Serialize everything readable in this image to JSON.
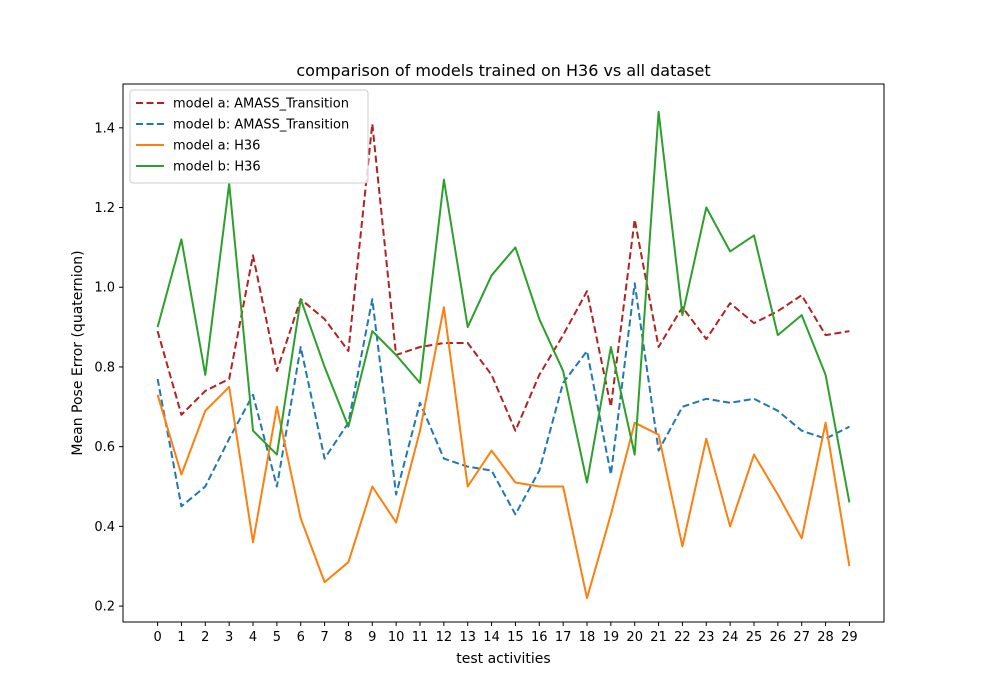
{
  "chart_data": {
    "type": "line",
    "title": "comparison of models trained on H36 vs all dataset",
    "xlabel": "test activities",
    "ylabel": "Mean Pose Error (quaternion)",
    "x": [
      0,
      1,
      2,
      3,
      4,
      5,
      6,
      7,
      8,
      9,
      10,
      11,
      12,
      13,
      14,
      15,
      16,
      17,
      18,
      19,
      20,
      21,
      22,
      23,
      24,
      25,
      26,
      27,
      28,
      29
    ],
    "x_tick_labels": [
      "0",
      "1",
      "2",
      "3",
      "4",
      "5",
      "6",
      "7",
      "8",
      "9",
      "10",
      "11",
      "12",
      "13",
      "14",
      "15",
      "16",
      "17",
      "18",
      "19",
      "20",
      "21",
      "22",
      "23",
      "24",
      "25",
      "26",
      "27",
      "28",
      "29"
    ],
    "xlim": [
      -1.45,
      30.45
    ],
    "ylim": [
      0.16,
      1.51
    ],
    "y_ticks": [
      0.2,
      0.4,
      0.6,
      0.8,
      1.0,
      1.2,
      1.4
    ],
    "y_tick_labels": [
      "0.2",
      "0.4",
      "0.6",
      "0.8",
      "1.0",
      "1.2",
      "1.4"
    ],
    "grid": false,
    "legend_position": "top-left",
    "series": [
      {
        "name": "model a: AMASS_Transition",
        "color": "#b22222",
        "dash": "dashed",
        "values": [
          0.89,
          0.68,
          0.74,
          0.77,
          1.08,
          0.79,
          0.97,
          0.92,
          0.84,
          1.41,
          0.83,
          0.85,
          0.86,
          0.86,
          0.78,
          0.64,
          0.78,
          0.88,
          0.99,
          0.7,
          1.17,
          0.85,
          0.95,
          0.87,
          0.96,
          0.91,
          0.94,
          0.98,
          0.88,
          0.89
        ]
      },
      {
        "name": "model b: AMASS_Transition",
        "color": "#1f77b4",
        "dash": "dashed",
        "values": [
          0.77,
          0.45,
          0.5,
          0.62,
          0.73,
          0.5,
          0.85,
          0.57,
          0.66,
          0.97,
          0.48,
          0.71,
          0.57,
          0.55,
          0.54,
          0.43,
          0.54,
          0.76,
          0.84,
          0.53,
          1.01,
          0.59,
          0.7,
          0.72,
          0.71,
          0.72,
          0.69,
          0.64,
          0.62,
          0.65
        ]
      },
      {
        "name": "model a: H36",
        "color": "#ff7f0e",
        "dash": "solid",
        "values": [
          0.73,
          0.53,
          0.69,
          0.75,
          0.36,
          0.7,
          0.42,
          0.26,
          0.31,
          0.5,
          0.41,
          0.64,
          0.95,
          0.5,
          0.59,
          0.51,
          0.5,
          0.5,
          0.22,
          0.43,
          0.66,
          0.63,
          0.35,
          0.62,
          0.4,
          0.58,
          0.48,
          0.37,
          0.66,
          0.3
        ]
      },
      {
        "name": "model b: H36",
        "color": "#2ca02c",
        "dash": "solid",
        "values": [
          0.9,
          1.12,
          0.78,
          1.26,
          0.64,
          0.58,
          0.97,
          0.8,
          0.65,
          0.89,
          0.83,
          0.76,
          1.27,
          0.9,
          1.03,
          1.1,
          0.92,
          0.79,
          0.51,
          0.85,
          0.58,
          1.44,
          0.93,
          1.2,
          1.09,
          1.13,
          0.88,
          0.93,
          0.78,
          0.46
        ]
      }
    ]
  }
}
